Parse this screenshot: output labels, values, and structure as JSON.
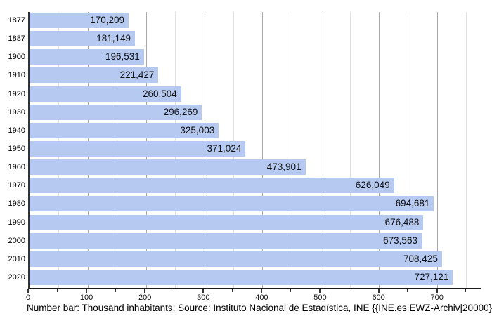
{
  "chart_data": {
    "type": "bar",
    "orientation": "horizontal",
    "title": "",
    "xlabel": "",
    "ylabel": "",
    "categories": [
      "1877",
      "1887",
      "1900",
      "1910",
      "1920",
      "1930",
      "1940",
      "1950",
      "1960",
      "1970",
      "1980",
      "1990",
      "2000",
      "2010",
      "2020"
    ],
    "values": [
      170209,
      181149,
      196531,
      221427,
      260504,
      296269,
      325003,
      371024,
      473901,
      626049,
      694681,
      676488,
      673563,
      708425,
      727121
    ],
    "value_labels": [
      "170,209",
      "181,149",
      "196,531",
      "221,427",
      "260,504",
      "296,269",
      "325,003",
      "371,024",
      "473,901",
      "626,049",
      "694,681",
      "676,488",
      "673,563",
      "708,425",
      "727,121"
    ],
    "value_unit": "inhabitants",
    "axis_unit": "thousand inhabitants",
    "xlim": [
      0,
      775
    ],
    "x_major_ticks": [
      0,
      100,
      200,
      300,
      400,
      500,
      600,
      700
    ],
    "x_minor_step": 50,
    "x_minor_max": 750,
    "grid": true,
    "legend_position": "none",
    "colors": {
      "bar_fill": "#b5c9f1",
      "bar_label_text": "#111111",
      "grid_major": "#a8a8a8",
      "grid_minor": "#e0e0e0",
      "axis": "#222222",
      "tick_label_text": "#111111",
      "background": "#ffffff"
    }
  },
  "caption": "Number bar: Thousand inhabitants; Source: Instituto Nacional de Estadística, INE {{INE.es EWZ-Archiv|20000}}"
}
